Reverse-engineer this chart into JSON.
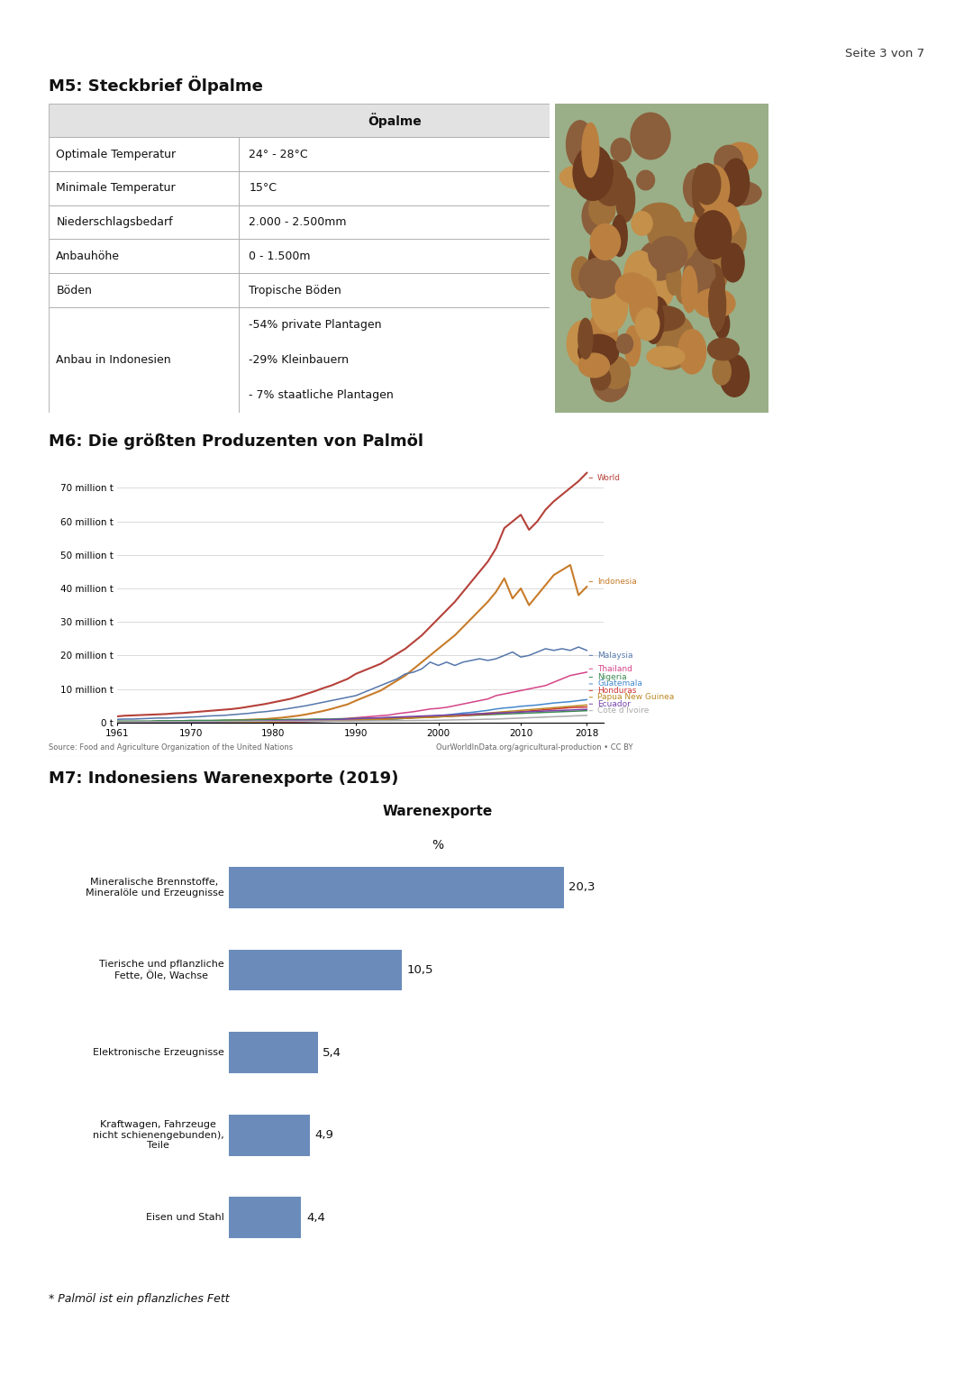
{
  "page_label": "Seite 3 von 7",
  "section1_title": "M5: Steckbrief Ölpalme",
  "table_header": "Öpalme",
  "table_rows": [
    [
      "Optimale Temperatur",
      "24° - 28°C"
    ],
    [
      "Minimale Temperatur",
      "15°C"
    ],
    [
      "Niederschlagsbedarf",
      "2.000 - 2.500mm"
    ],
    [
      "Anbauhöhe",
      "0 - 1.500m"
    ],
    [
      "Böden",
      "Tropische Böden"
    ],
    [
      "Anbau in Indonesien",
      "-54% private Plantagen\n-29% Kleinbauern\n- 7% staatliche Plantagen"
    ]
  ],
  "section2_title": "M6: Die größten Produzenten von Palmöl",
  "chart_source": "Source: Food and Agriculture Organization of the United Nations",
  "chart_credit": "OurWorldInData.org/agricultural-production • CC BY",
  "years": [
    1961,
    1962,
    1963,
    1964,
    1965,
    1966,
    1967,
    1968,
    1969,
    1970,
    1971,
    1972,
    1973,
    1974,
    1975,
    1976,
    1977,
    1978,
    1979,
    1980,
    1981,
    1982,
    1983,
    1984,
    1985,
    1986,
    1987,
    1988,
    1989,
    1990,
    1991,
    1992,
    1993,
    1994,
    1995,
    1996,
    1997,
    1998,
    1999,
    2000,
    2001,
    2002,
    2003,
    2004,
    2005,
    2006,
    2007,
    2008,
    2009,
    2010,
    2011,
    2012,
    2013,
    2014,
    2015,
    2016,
    2017,
    2018
  ],
  "world": [
    1.8,
    2.0,
    2.1,
    2.2,
    2.3,
    2.4,
    2.5,
    2.7,
    2.8,
    3.0,
    3.2,
    3.4,
    3.6,
    3.8,
    4.0,
    4.3,
    4.7,
    5.1,
    5.5,
    6.0,
    6.5,
    7.0,
    7.7,
    8.5,
    9.3,
    10.2,
    11.0,
    12.0,
    13.0,
    14.5,
    15.5,
    16.5,
    17.5,
    19.0,
    20.5,
    22.0,
    24.0,
    26.0,
    28.5,
    31.0,
    33.5,
    36.0,
    39.0,
    42.0,
    45.0,
    48.0,
    52.0,
    58.0,
    60.0,
    62.0,
    57.5,
    60.0,
    63.5,
    66.0,
    68.0,
    70.0,
    72.0,
    74.5
  ],
  "indonesia": [
    0.2,
    0.2,
    0.2,
    0.2,
    0.2,
    0.3,
    0.3,
    0.3,
    0.3,
    0.4,
    0.4,
    0.4,
    0.5,
    0.5,
    0.6,
    0.7,
    0.8,
    0.9,
    1.0,
    1.2,
    1.4,
    1.7,
    2.0,
    2.4,
    2.9,
    3.4,
    4.0,
    4.7,
    5.4,
    6.5,
    7.5,
    8.5,
    9.5,
    11.0,
    12.5,
    14.0,
    16.0,
    18.0,
    20.0,
    22.0,
    24.0,
    26.0,
    28.5,
    31.0,
    33.5,
    36.0,
    39.0,
    43.0,
    37.0,
    40.0,
    35.0,
    38.0,
    41.0,
    44.0,
    45.5,
    47.0,
    38.0,
    40.5
  ],
  "malaysia": [
    0.9,
    1.0,
    1.0,
    1.1,
    1.2,
    1.3,
    1.3,
    1.4,
    1.5,
    1.6,
    1.7,
    1.9,
    2.0,
    2.1,
    2.3,
    2.5,
    2.7,
    3.0,
    3.2,
    3.5,
    3.8,
    4.2,
    4.6,
    5.0,
    5.5,
    6.0,
    6.5,
    7.0,
    7.5,
    8.0,
    9.0,
    10.0,
    11.0,
    12.0,
    13.0,
    14.5,
    15.0,
    16.0,
    18.0,
    17.0,
    18.0,
    17.0,
    18.0,
    18.5,
    19.0,
    18.5,
    19.0,
    20.0,
    21.0,
    19.5,
    20.0,
    21.0,
    22.0,
    21.5,
    22.0,
    21.5,
    22.5,
    21.5
  ],
  "thailand": [
    0.1,
    0.1,
    0.1,
    0.1,
    0.1,
    0.1,
    0.1,
    0.1,
    0.1,
    0.1,
    0.1,
    0.1,
    0.1,
    0.1,
    0.1,
    0.2,
    0.2,
    0.2,
    0.2,
    0.3,
    0.3,
    0.3,
    0.4,
    0.5,
    0.6,
    0.7,
    0.8,
    1.0,
    1.2,
    1.4,
    1.6,
    1.8,
    2.0,
    2.2,
    2.6,
    2.9,
    3.2,
    3.6,
    4.0,
    4.2,
    4.5,
    5.0,
    5.5,
    6.0,
    6.5,
    7.0,
    8.0,
    8.5,
    9.0,
    9.5,
    10.0,
    10.5,
    11.0,
    12.0,
    13.0,
    14.0,
    14.5,
    15.0
  ],
  "nigeria": [
    0.4,
    0.4,
    0.4,
    0.4,
    0.4,
    0.5,
    0.5,
    0.5,
    0.5,
    0.6,
    0.6,
    0.6,
    0.6,
    0.7,
    0.7,
    0.7,
    0.7,
    0.8,
    0.8,
    0.8,
    0.8,
    0.9,
    0.9,
    0.9,
    1.0,
    1.0,
    1.0,
    1.1,
    1.1,
    1.2,
    1.2,
    1.3,
    1.3,
    1.4,
    1.4,
    1.5,
    1.5,
    1.6,
    1.6,
    1.7,
    1.8,
    1.9,
    2.0,
    2.1,
    2.2,
    2.3,
    2.4,
    2.5,
    2.6,
    2.7,
    2.8,
    2.9,
    3.0,
    3.1,
    3.2,
    3.3,
    3.4,
    3.5
  ],
  "guatemala": [
    0.02,
    0.02,
    0.02,
    0.02,
    0.02,
    0.02,
    0.02,
    0.02,
    0.02,
    0.03,
    0.03,
    0.03,
    0.04,
    0.05,
    0.05,
    0.06,
    0.07,
    0.08,
    0.09,
    0.1,
    0.12,
    0.15,
    0.18,
    0.2,
    0.25,
    0.3,
    0.35,
    0.4,
    0.45,
    0.5,
    0.6,
    0.7,
    0.8,
    0.9,
    1.0,
    1.2,
    1.4,
    1.6,
    1.8,
    2.0,
    2.2,
    2.5,
    2.8,
    3.0,
    3.3,
    3.6,
    4.0,
    4.3,
    4.5,
    4.8,
    5.0,
    5.2,
    5.5,
    5.8,
    6.0,
    6.2,
    6.5,
    6.8
  ],
  "honduras": [
    0.01,
    0.01,
    0.01,
    0.01,
    0.01,
    0.01,
    0.01,
    0.02,
    0.02,
    0.02,
    0.03,
    0.03,
    0.04,
    0.05,
    0.06,
    0.07,
    0.08,
    0.09,
    0.1,
    0.12,
    0.14,
    0.17,
    0.2,
    0.25,
    0.3,
    0.35,
    0.4,
    0.5,
    0.6,
    0.7,
    0.8,
    0.9,
    1.0,
    1.1,
    1.2,
    1.3,
    1.4,
    1.5,
    1.6,
    1.7,
    1.8,
    1.9,
    2.0,
    2.2,
    2.4,
    2.5,
    2.7,
    2.9,
    3.0,
    3.2,
    3.4,
    3.6,
    3.8,
    4.0,
    4.2,
    4.4,
    4.5,
    4.6
  ],
  "papua_new_guinea": [
    0.01,
    0.01,
    0.01,
    0.02,
    0.02,
    0.02,
    0.03,
    0.03,
    0.04,
    0.05,
    0.06,
    0.07,
    0.08,
    0.09,
    0.1,
    0.12,
    0.14,
    0.17,
    0.2,
    0.25,
    0.3,
    0.35,
    0.4,
    0.45,
    0.5,
    0.55,
    0.6,
    0.65,
    0.7,
    0.75,
    0.8,
    0.85,
    0.9,
    1.0,
    1.1,
    1.2,
    1.3,
    1.4,
    1.5,
    1.6,
    1.8,
    2.0,
    2.2,
    2.4,
    2.6,
    2.8,
    3.0,
    3.2,
    3.4,
    3.6,
    3.8,
    4.0,
    4.2,
    4.4,
    4.6,
    4.8,
    5.0,
    5.2
  ],
  "ecuador": [
    0.02,
    0.02,
    0.02,
    0.03,
    0.03,
    0.04,
    0.05,
    0.06,
    0.08,
    0.1,
    0.12,
    0.15,
    0.18,
    0.2,
    0.25,
    0.3,
    0.35,
    0.4,
    0.45,
    0.5,
    0.55,
    0.6,
    0.65,
    0.7,
    0.75,
    0.8,
    0.85,
    0.9,
    1.0,
    1.1,
    1.2,
    1.3,
    1.4,
    1.5,
    1.6,
    1.7,
    1.8,
    1.9,
    2.0,
    2.1,
    2.2,
    2.3,
    2.4,
    2.5,
    2.6,
    2.7,
    2.8,
    2.9,
    3.0,
    3.1,
    3.2,
    3.3,
    3.4,
    3.5,
    3.6,
    3.7,
    3.8,
    3.9
  ],
  "cote_divoire": [
    0.15,
    0.16,
    0.17,
    0.18,
    0.19,
    0.2,
    0.21,
    0.22,
    0.23,
    0.24,
    0.25,
    0.26,
    0.27,
    0.28,
    0.29,
    0.3,
    0.31,
    0.32,
    0.33,
    0.34,
    0.35,
    0.36,
    0.37,
    0.38,
    0.39,
    0.4,
    0.41,
    0.42,
    0.43,
    0.44,
    0.45,
    0.46,
    0.48,
    0.5,
    0.52,
    0.54,
    0.56,
    0.58,
    0.6,
    0.65,
    0.7,
    0.75,
    0.8,
    0.85,
    0.9,
    0.95,
    1.0,
    1.1,
    1.2,
    1.3,
    1.4,
    1.5,
    1.6,
    1.7,
    1.8,
    1.9,
    2.0,
    2.1
  ],
  "series_colors": {
    "World": "#b5413a",
    "Indonesia": "#c87c2a",
    "Malaysia": "#5577aa",
    "Thailand": "#d44488",
    "Nigeria": "#3a8a50",
    "Guatemala": "#4488cc",
    "Honduras": "#cc3333",
    "Papua New Guinea": "#bb8822",
    "Ecuador": "#7744aa",
    "Cote d'Ivoire": "#aaaaaa"
  },
  "section3_title": "M7: Indonesiens Warenexporte (2019)",
  "bar_title": "Warenexporte",
  "bar_subtitle": "%",
  "bar_categories": [
    "Mineralische Brennstoffe,\nMineralöle und Erzeugnisse",
    "Tierische und pflanzliche\nFette, Öle, Wachse",
    "Elektronische Erzeugnisse",
    "Kraftwagen, Fahrzeuge\nnicht schienengebunden),\nTeile",
    "Eisen und Stahl"
  ],
  "bar_values": [
    20.3,
    10.5,
    5.4,
    4.9,
    4.4
  ],
  "bar_value_labels": [
    "20,3",
    "10,5",
    "5,4",
    "4,9",
    "4,4"
  ],
  "bar_color": "#6b8cba",
  "footnote": "* Palmöl ist ein pflanzliches Fett",
  "background_color": "#ffffff",
  "img_placeholder_color": "#c8a882"
}
